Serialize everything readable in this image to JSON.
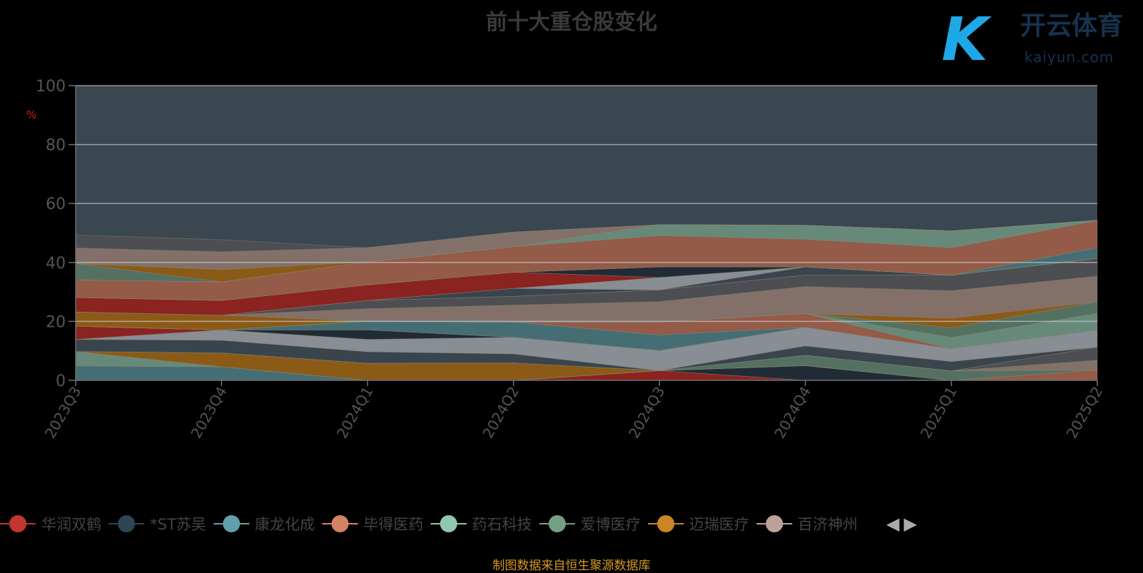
{
  "chart_data": {
    "type": "area",
    "stacked": true,
    "title": "前十大重仓股变化",
    "ylabel": "%",
    "xlabel": "",
    "ylim": [
      0,
      100
    ],
    "yticks": [
      0,
      20,
      40,
      60,
      80,
      100
    ],
    "categories": [
      "2023Q3",
      "2023Q4",
      "2024Q1",
      "2024Q2",
      "2024Q3",
      "2024Q4",
      "2025Q1",
      "2025Q2"
    ],
    "grid": true,
    "legend_placement": "bottom",
    "series": [
      {
        "name": "华润双鹤",
        "color": "#8b2320",
        "values": [
          0,
          0,
          0,
          0,
          3.3,
          0,
          0,
          0
        ]
      },
      {
        "name": "*ST苏吴",
        "color": "#212b35",
        "values": [
          0,
          0,
          0,
          0,
          0,
          5.0,
          0,
          0
        ]
      },
      {
        "name": "康龙化成",
        "color": "#456e74",
        "values": [
          4.9,
          4.6,
          0,
          0,
          0,
          0,
          0,
          0
        ]
      },
      {
        "name": "毕得医药",
        "color": "#935b48",
        "values": [
          0,
          0,
          0,
          0,
          0,
          0,
          0,
          3.5
        ]
      },
      {
        "name": "药石科技",
        "color": "#66897a",
        "values": [
          4.9,
          0,
          0,
          0,
          0,
          0,
          0,
          0
        ]
      },
      {
        "name": "爱博医疗",
        "color": "#547060",
        "values": [
          0,
          0,
          0,
          0,
          0,
          3.5,
          3.2,
          0
        ]
      },
      {
        "name": "迈瑞医疗",
        "color": "#8b5a17",
        "values": [
          0,
          4.7,
          5.8,
          5.9,
          0,
          0,
          0,
          0
        ]
      },
      {
        "name": "百济神州",
        "color": "#827069",
        "values": [
          0,
          0,
          0,
          0,
          0,
          0,
          0,
          3.3
        ]
      },
      {
        "name": null,
        "color": "#4d4e51",
        "values": [
          0,
          0,
          0,
          0,
          0,
          0,
          0,
          4.5
        ]
      },
      {
        "name": null,
        "color": "#39444d",
        "values": [
          4.1,
          4.3,
          3.9,
          3.1,
          0,
          3.2,
          3.2,
          0
        ]
      },
      {
        "name": null,
        "color": "#898d94",
        "values": [
          0,
          3.5,
          4.2,
          5.6,
          6.8,
          6.3,
          4.3,
          5.7
        ]
      },
      {
        "name": null,
        "color": "#8b2320",
        "values": [
          4.5,
          0,
          0,
          0,
          0,
          0,
          0,
          0
        ]
      },
      {
        "name": null,
        "color": "#212b35",
        "values": [
          0,
          0,
          3.2,
          0,
          0,
          0,
          0,
          0
        ]
      },
      {
        "name": null,
        "color": "#456e74",
        "values": [
          0,
          0,
          3.0,
          5.2,
          5.3,
          0,
          0,
          0
        ]
      },
      {
        "name": null,
        "color": "#935b48",
        "values": [
          0,
          0,
          0,
          0,
          4.4,
          4.7,
          0,
          0
        ]
      },
      {
        "name": null,
        "color": "#66897a",
        "values": [
          0,
          0,
          0,
          0,
          0,
          0,
          3.9,
          5.7
        ]
      },
      {
        "name": null,
        "color": "#547060",
        "values": [
          0,
          0,
          0,
          0,
          0,
          0,
          3.2,
          4.0
        ]
      },
      {
        "name": null,
        "color": "#8b5a17",
        "values": [
          4.8,
          5.0,
          0,
          0,
          0,
          0,
          3.3,
          0
        ]
      },
      {
        "name": null,
        "color": "#827069",
        "values": [
          0,
          0,
          4.2,
          5.7,
          6.9,
          9.1,
          9.3,
          8.6
        ]
      },
      {
        "name": null,
        "color": "#4d4e51",
        "values": [
          0,
          0,
          2.8,
          3.0,
          4.0,
          3.9,
          5.3,
          6.1
        ]
      },
      {
        "name": null,
        "color": "#39444d",
        "values": [
          0,
          0,
          0,
          2.7,
          0,
          2.8,
          0,
          0
        ]
      },
      {
        "name": null,
        "color": "#898d94",
        "values": [
          0,
          0,
          0,
          0,
          4.2,
          0,
          0,
          0
        ]
      },
      {
        "name": null,
        "color": "#8b2320",
        "values": [
          4.9,
          5.0,
          5.3,
          5.5,
          0,
          0,
          0,
          0
        ]
      },
      {
        "name": null,
        "color": "#212b35",
        "values": [
          0,
          0,
          0,
          0,
          3.6,
          0,
          0,
          0
        ]
      },
      {
        "name": null,
        "color": "#456e74",
        "values": [
          0,
          0,
          0,
          0,
          0,
          0,
          0,
          3.6
        ]
      },
      {
        "name": null,
        "color": "#935b48",
        "values": [
          6.0,
          6.3,
          7.8,
          8.7,
          10.6,
          9.4,
          9.3,
          9.2
        ]
      },
      {
        "name": null,
        "color": "#66897a",
        "values": [
          0,
          0,
          0,
          0,
          3.7,
          4.7,
          5.7,
          0.1
        ]
      },
      {
        "name": null,
        "color": "#547060",
        "values": [
          5.5,
          0,
          0,
          0,
          0,
          0,
          0,
          0
        ]
      },
      {
        "name": null,
        "color": "#8b5a17",
        "values": [
          0,
          4.2,
          0,
          0,
          0,
          0,
          0,
          0
        ]
      },
      {
        "name": null,
        "color": "#827069",
        "values": [
          5.3,
          6.0,
          4.8,
          4.9,
          0,
          0,
          0,
          0
        ]
      },
      {
        "name": null,
        "color": "#4d4e51",
        "values": [
          4.4,
          4.1,
          0,
          0,
          0,
          0,
          0,
          0
        ]
      }
    ]
  },
  "legend": [
    {
      "label": "华润双鹤",
      "color": "#c23531"
    },
    {
      "label": "*ST苏吴",
      "color": "#2f4554"
    },
    {
      "label": "康龙化成",
      "color": "#61a0a8"
    },
    {
      "label": "毕得医药",
      "color": "#d48265"
    },
    {
      "label": "药石科技",
      "color": "#91c7ae"
    },
    {
      "label": "爱博医疗",
      "color": "#749f83"
    },
    {
      "label": "迈瑞医疗",
      "color": "#ca8622"
    },
    {
      "label": "百济神州",
      "color": "#bda29a"
    }
  ],
  "pager": {
    "prev": "◀",
    "next": "▶"
  },
  "source": "制图数据来自恒生聚源数据库",
  "watermark": {
    "mark": "K",
    "cn": "开云体育",
    "en": "kaiyun.com"
  }
}
